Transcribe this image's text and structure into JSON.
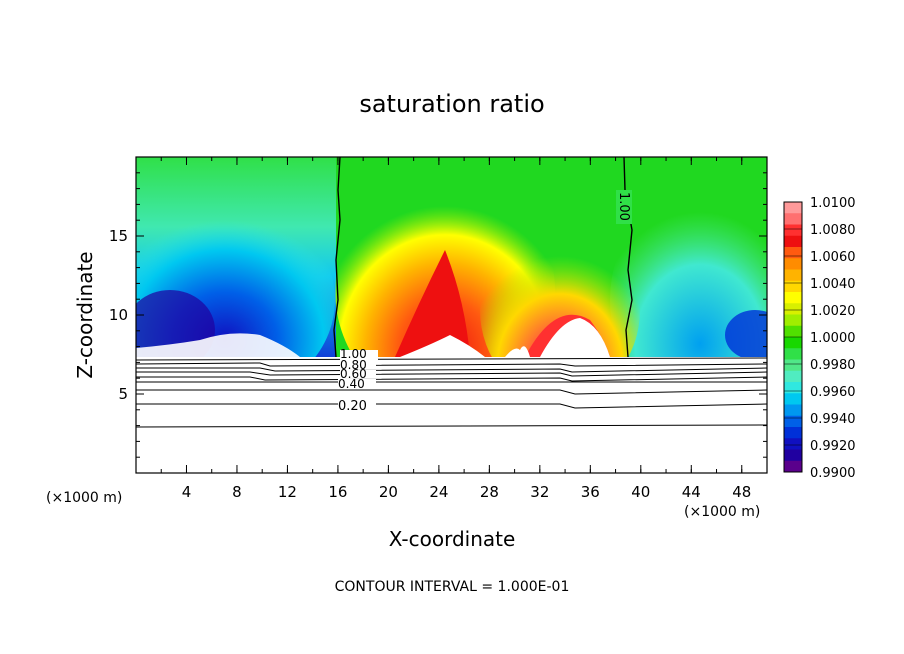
{
  "chart_data": {
    "type": "heatmap",
    "title": "saturation ratio",
    "xlabel": "X-coordinate",
    "ylabel": "Z-coordinate",
    "x_unit_left": "(×1000 m)",
    "x_unit_right": "(×1000 m)",
    "footer": "CONTOUR INTERVAL = 1.000E-01",
    "xlim": [
      0,
      50
    ],
    "ylim": [
      0,
      20
    ],
    "x_ticks": [
      4,
      8,
      12,
      16,
      20,
      24,
      28,
      32,
      36,
      40,
      44,
      48
    ],
    "y_ticks": [
      5,
      10,
      15
    ],
    "colorbar": {
      "min": 0.99,
      "max": 1.01,
      "labels": [
        "1.0100",
        "1.0080",
        "1.0060",
        "1.0040",
        "1.0020",
        "1.0000",
        "0.9980",
        "0.9960",
        "0.9940",
        "0.9920",
        "0.9900"
      ],
      "colors": [
        "#ff9a9a",
        "#ff7070",
        "#ff3030",
        "#ee1010",
        "#ff5a10",
        "#ff8c00",
        "#ffb300",
        "#ffd800",
        "#ffff00",
        "#d8f000",
        "#a0ee00",
        "#50e000",
        "#18d800",
        "#30e048",
        "#50e888",
        "#50ecc0",
        "#30e8e0",
        "#00c8f0",
        "#0098f0",
        "#0060e8",
        "#0030d8",
        "#1010c0",
        "#2000a0",
        "#5a008c"
      ]
    },
    "contour_labels": [
      "1.00",
      "0.80",
      "0.60",
      "0.40",
      "0.20",
      "1.00"
    ],
    "contour_levels": [
      0.2,
      0.4,
      0.6,
      0.8,
      1.0
    ]
  }
}
